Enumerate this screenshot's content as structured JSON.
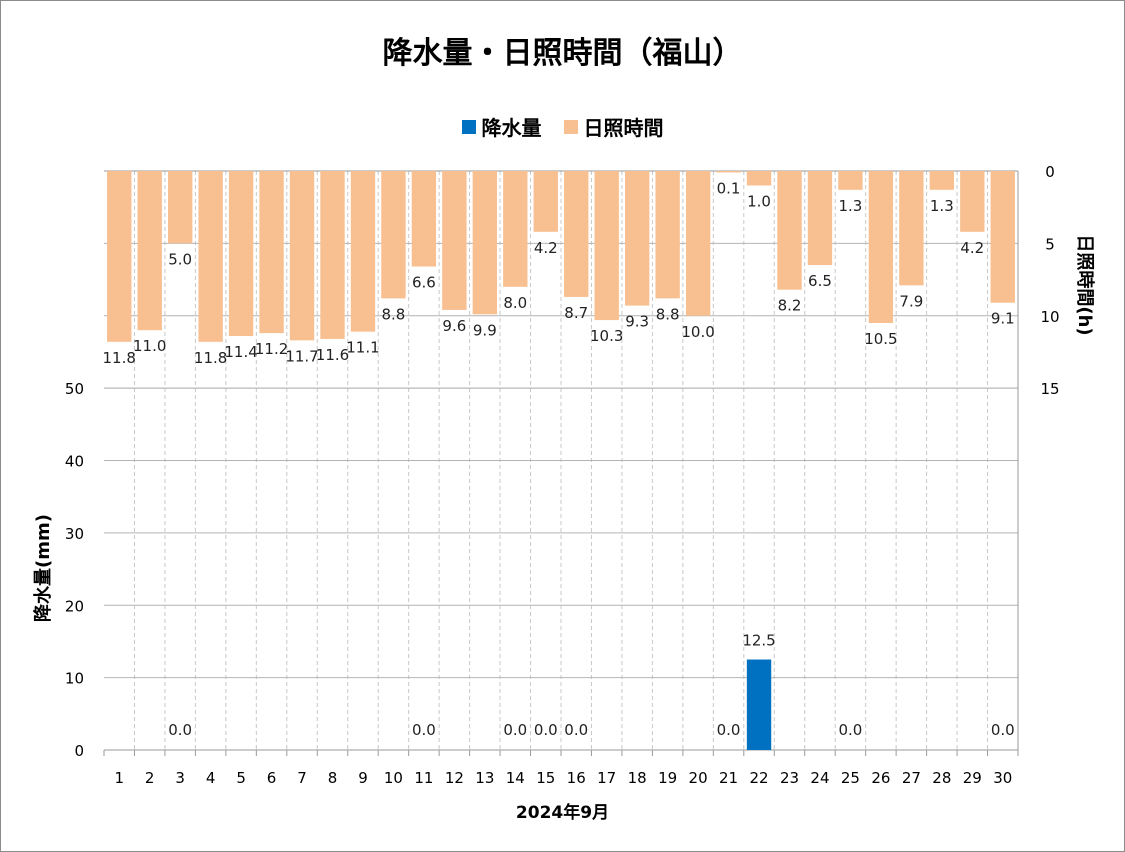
{
  "chart_data": {
    "type": "bar",
    "title": "降水量・日照時間（福山）",
    "xlabel": "2024年9月",
    "categories": [
      "1",
      "2",
      "3",
      "4",
      "5",
      "6",
      "7",
      "8",
      "9",
      "10",
      "11",
      "12",
      "13",
      "14",
      "15",
      "16",
      "17",
      "18",
      "19",
      "20",
      "21",
      "22",
      "23",
      "24",
      "25",
      "26",
      "27",
      "28",
      "29",
      "30"
    ],
    "series": [
      {
        "name": "降水量",
        "axis": "left",
        "color": "#0070c0",
        "values": [
          null,
          null,
          0.0,
          null,
          null,
          null,
          null,
          null,
          null,
          null,
          0.0,
          null,
          null,
          0.0,
          0.0,
          0.0,
          null,
          null,
          null,
          null,
          0.0,
          12.5,
          null,
          null,
          0.0,
          null,
          null,
          null,
          null,
          0.0
        ]
      },
      {
        "name": "日照時間",
        "axis": "right",
        "inverted": true,
        "color": "#f8c090",
        "values": [
          11.8,
          11.0,
          5.0,
          11.8,
          11.4,
          11.2,
          11.7,
          11.6,
          11.1,
          8.8,
          6.6,
          9.6,
          9.9,
          8.0,
          4.2,
          8.7,
          10.3,
          9.3,
          8.8,
          10.0,
          0.1,
          1.0,
          8.2,
          6.5,
          1.3,
          10.5,
          7.9,
          1.3,
          4.2,
          9.1
        ]
      }
    ],
    "yaxis_left": {
      "label": "降水量(mm)",
      "range": [
        0,
        80
      ],
      "ticks": [
        0,
        10,
        20,
        30,
        40,
        50
      ]
    },
    "yaxis_right": {
      "label": "日照時間(h)",
      "range": [
        0,
        40
      ],
      "inverted": true,
      "ticks": [
        0,
        5,
        10,
        15
      ]
    },
    "grid": true,
    "legend_position": "top"
  }
}
